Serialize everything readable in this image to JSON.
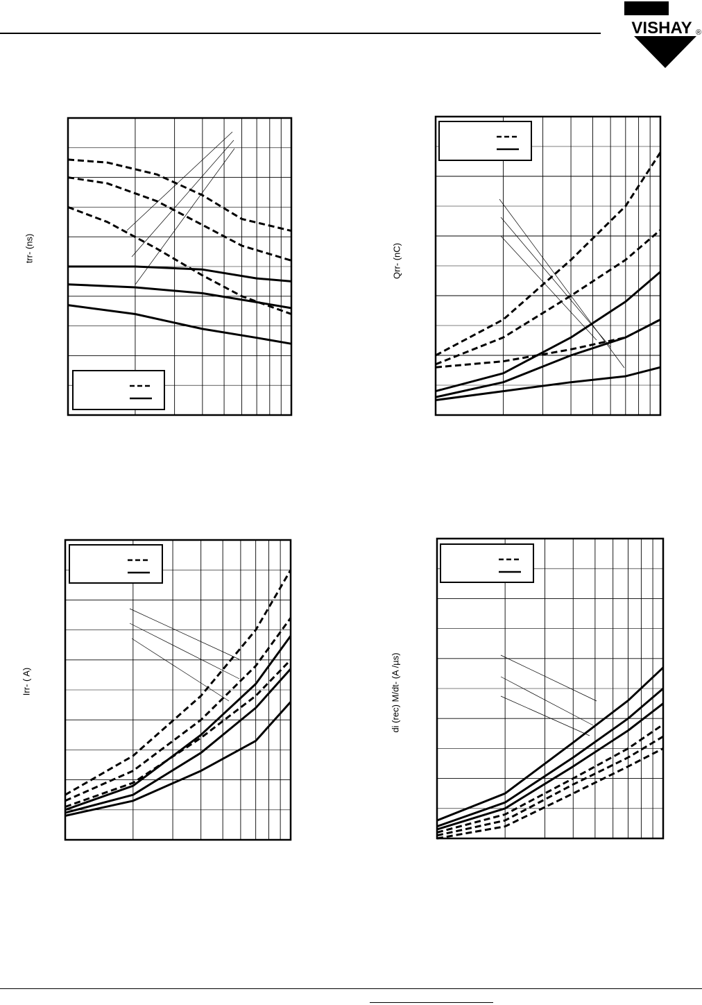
{
  "brand": {
    "logo_text": "VISHAY",
    "registered_mark": "®"
  },
  "chart_data": [
    {
      "type": "line",
      "title": "",
      "xlabel": "",
      "ylabel": "trr- (ns)",
      "x_scale": "log",
      "xlim": [
        100,
        1000
      ],
      "ylim": [
        0,
        100
      ],
      "grid": true,
      "legend_position": "bottom-left",
      "legend_entries": [
        {
          "name": "",
          "style": "dashed"
        },
        {
          "name": "",
          "style": "solid"
        }
      ],
      "series": [
        {
          "style": "dashed",
          "points": [
            [
              100,
              86
            ],
            [
              150,
              85
            ],
            [
              250,
              81
            ],
            [
              400,
              74
            ],
            [
              600,
              66
            ],
            [
              1000,
              62
            ]
          ]
        },
        {
          "style": "dashed",
          "points": [
            [
              100,
              80
            ],
            [
              150,
              78
            ],
            [
              250,
              72
            ],
            [
              400,
              64
            ],
            [
              600,
              57
            ],
            [
              1000,
              52
            ]
          ]
        },
        {
          "style": "dashed",
          "points": [
            [
              100,
              70
            ],
            [
              150,
              65
            ],
            [
              250,
              56
            ],
            [
              400,
              47
            ],
            [
              600,
              40
            ],
            [
              1000,
              34
            ]
          ]
        },
        {
          "style": "solid",
          "points": [
            [
              100,
              50
            ],
            [
              200,
              50
            ],
            [
              400,
              49
            ],
            [
              700,
              46
            ],
            [
              1000,
              45
            ]
          ]
        },
        {
          "style": "solid",
          "points": [
            [
              100,
              44
            ],
            [
              200,
              43
            ],
            [
              400,
              41
            ],
            [
              700,
              38
            ],
            [
              1000,
              36
            ]
          ]
        },
        {
          "style": "solid",
          "points": [
            [
              100,
              37
            ],
            [
              200,
              34
            ],
            [
              400,
              29
            ],
            [
              700,
              26
            ],
            [
              1000,
              24
            ]
          ]
        }
      ]
    },
    {
      "type": "line",
      "title": "",
      "xlabel": "",
      "ylabel": "Qrr- (nC)",
      "x_scale": "log",
      "xlim": [
        100,
        1000
      ],
      "ylim": [
        0,
        100
      ],
      "grid": true,
      "legend_position": "top-left",
      "legend_entries": [
        {
          "name": "",
          "style": "dashed"
        },
        {
          "name": "",
          "style": "solid"
        }
      ],
      "series": [
        {
          "style": "dashed",
          "points": [
            [
              100,
              20
            ],
            [
              200,
              32
            ],
            [
              400,
              52
            ],
            [
              700,
              70
            ],
            [
              1000,
              88
            ]
          ]
        },
        {
          "style": "dashed",
          "points": [
            [
              100,
              17
            ],
            [
              200,
              26
            ],
            [
              400,
              40
            ],
            [
              700,
              52
            ],
            [
              1000,
              62
            ]
          ]
        },
        {
          "style": "dashed",
          "points": [
            [
              100,
              16
            ],
            [
              200,
              18
            ],
            [
              400,
              22
            ],
            [
              700,
              26
            ],
            [
              1000,
              32
            ]
          ]
        },
        {
          "style": "solid",
          "points": [
            [
              100,
              8
            ],
            [
              200,
              14
            ],
            [
              400,
              26
            ],
            [
              700,
              38
            ],
            [
              1000,
              48
            ]
          ]
        },
        {
          "style": "solid",
          "points": [
            [
              100,
              6
            ],
            [
              200,
              11
            ],
            [
              400,
              20
            ],
            [
              700,
              26
            ],
            [
              1000,
              32
            ]
          ]
        },
        {
          "style": "solid",
          "points": [
            [
              100,
              5
            ],
            [
              200,
              8
            ],
            [
              400,
              11
            ],
            [
              700,
              13
            ],
            [
              1000,
              16
            ]
          ]
        }
      ]
    },
    {
      "type": "line",
      "title": "",
      "xlabel": "",
      "ylabel": "Irr- ( A)",
      "x_scale": "log",
      "xlim": [
        100,
        1000
      ],
      "ylim": [
        0,
        100
      ],
      "grid": true,
      "legend_position": "top-left",
      "legend_entries": [
        {
          "name": "",
          "style": "dashed"
        },
        {
          "name": "",
          "style": "solid"
        }
      ],
      "series": [
        {
          "style": "dashed",
          "points": [
            [
              100,
              15
            ],
            [
              200,
              28
            ],
            [
              400,
              48
            ],
            [
              700,
              70
            ],
            [
              1000,
              90
            ]
          ]
        },
        {
          "style": "dashed",
          "points": [
            [
              100,
              13
            ],
            [
              200,
              23
            ],
            [
              400,
              40
            ],
            [
              700,
              58
            ],
            [
              1000,
              74
            ]
          ]
        },
        {
          "style": "dashed",
          "points": [
            [
              100,
              11
            ],
            [
              200,
              19
            ],
            [
              400,
              34
            ],
            [
              700,
              48
            ],
            [
              1000,
              60
            ]
          ]
        },
        {
          "style": "solid",
          "points": [
            [
              100,
              10
            ],
            [
              200,
              18
            ],
            [
              400,
              35
            ],
            [
              700,
              52
            ],
            [
              1000,
              68
            ]
          ]
        },
        {
          "style": "solid",
          "points": [
            [
              100,
              9
            ],
            [
              200,
              15
            ],
            [
              400,
              29
            ],
            [
              700,
              44
            ],
            [
              1000,
              57
            ]
          ]
        },
        {
          "style": "solid",
          "points": [
            [
              100,
              8
            ],
            [
              200,
              13
            ],
            [
              400,
              23
            ],
            [
              700,
              33
            ],
            [
              1000,
              46
            ]
          ]
        }
      ]
    },
    {
      "type": "line",
      "title": "",
      "xlabel": "",
      "ylabel": "di (rec) M/dt- (A /µs)",
      "x_scale": "log",
      "xlim": [
        100,
        1000
      ],
      "ylim": [
        0,
        100
      ],
      "grid": true,
      "legend_position": "top-left",
      "legend_entries": [
        {
          "name": "",
          "style": "dashed"
        },
        {
          "name": "",
          "style": "solid"
        }
      ],
      "series": [
        {
          "style": "solid",
          "points": [
            [
              100,
              6
            ],
            [
              200,
              15
            ],
            [
              400,
              32
            ],
            [
              700,
              46
            ],
            [
              1000,
              57
            ]
          ]
        },
        {
          "style": "solid",
          "points": [
            [
              100,
              4
            ],
            [
              200,
              12
            ],
            [
              400,
              27
            ],
            [
              700,
              40
            ],
            [
              1000,
              50
            ]
          ]
        },
        {
          "style": "solid",
          "points": [
            [
              100,
              3
            ],
            [
              200,
              10
            ],
            [
              400,
              24
            ],
            [
              700,
              36
            ],
            [
              1000,
              45
            ]
          ]
        },
        {
          "style": "dashed",
          "points": [
            [
              100,
              2
            ],
            [
              200,
              8
            ],
            [
              400,
              20
            ],
            [
              700,
              30
            ],
            [
              1000,
              38
            ]
          ]
        },
        {
          "style": "dashed",
          "points": [
            [
              100,
              1
            ],
            [
              200,
              6
            ],
            [
              400,
              18
            ],
            [
              700,
              27
            ],
            [
              1000,
              34
            ]
          ]
        },
        {
          "style": "dashed",
          "points": [
            [
              100,
              0
            ],
            [
              200,
              4
            ],
            [
              400,
              15
            ],
            [
              700,
              24
            ],
            [
              1000,
              30
            ]
          ]
        }
      ]
    }
  ]
}
